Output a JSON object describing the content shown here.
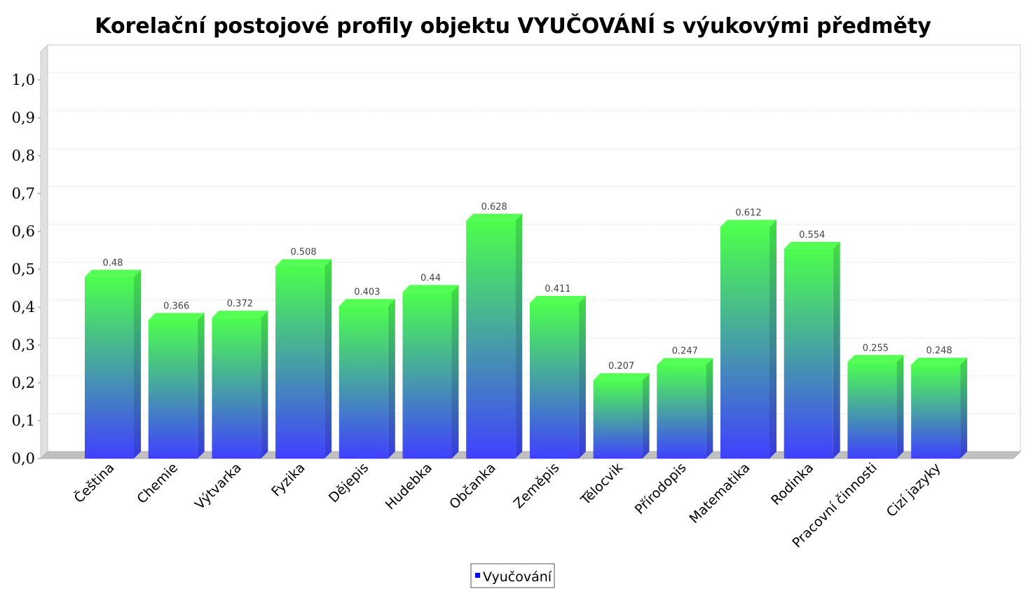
{
  "chart_data": {
    "type": "bar",
    "title": "Korelační postojové profily objektu VYUČOVÁNÍ s výukovými předměty",
    "categories": [
      "Čeština",
      "Chemie",
      "Výtvarka",
      "Fyzika",
      "Dějepis",
      "Hudebka",
      "Občanka",
      "Zeměpis",
      "Tělocvik",
      "Přírodopis",
      "Matematika",
      "Rodinka",
      "Pracovní činnosti",
      "Cizí jazyky"
    ],
    "series": [
      {
        "name": "Vyučování",
        "values": [
          0.48,
          0.366,
          0.372,
          0.508,
          0.403,
          0.44,
          0.628,
          0.411,
          0.207,
          0.247,
          0.612,
          0.554,
          0.255,
          0.248
        ],
        "value_labels": [
          "0.48",
          "0.366",
          "0.372",
          "0.508",
          "0.403",
          "0.44",
          "0.628",
          "0.411",
          "0.207",
          "0.247",
          "0.612",
          "0.554",
          "0.255",
          "0.248"
        ],
        "color_top": "#4cff4c",
        "color_bottom": "#4040ff"
      }
    ],
    "ylim": [
      0,
      1.0
    ],
    "yticks": [
      0.0,
      0.1,
      0.2,
      0.3,
      0.4,
      0.5,
      0.6,
      0.7,
      0.8,
      0.9,
      1.0
    ],
    "ytick_labels": [
      "0,0",
      "0,1",
      "0,2",
      "0,3",
      "0,4",
      "0,5",
      "0,6",
      "0,7",
      "0,8",
      "0,9",
      "1,0"
    ],
    "xlabel": "",
    "ylabel": "",
    "grid": true,
    "legend_position": "bottom-center",
    "legend_marker_color": "#0000ff"
  }
}
